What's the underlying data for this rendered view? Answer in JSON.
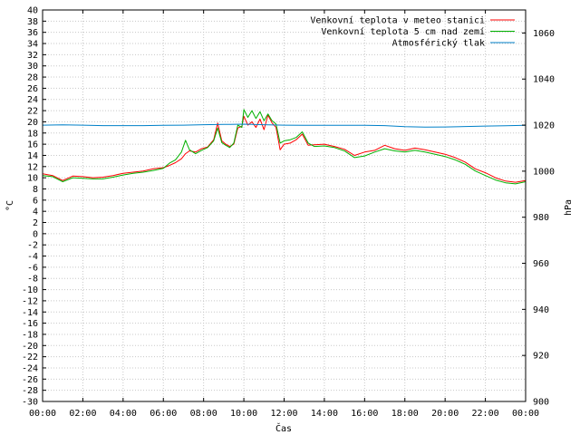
{
  "chart_data": {
    "type": "line",
    "xlabel": "Čas",
    "ylabel": "°C",
    "y2label": "hPa",
    "grid": true,
    "legend_position": "top-right",
    "x_ticks": [
      "00:00",
      "02:00",
      "04:00",
      "06:00",
      "08:00",
      "10:00",
      "12:00",
      "14:00",
      "16:00",
      "18:00",
      "20:00",
      "22:00",
      "00:00"
    ],
    "x_range_hours": [
      0,
      24
    ],
    "ylim": [
      -30,
      40
    ],
    "y_ticks": [
      40,
      38,
      36,
      34,
      32,
      30,
      28,
      26,
      24,
      22,
      20,
      18,
      16,
      14,
      12,
      10,
      8,
      6,
      4,
      2,
      0,
      -2,
      -4,
      -6,
      -8,
      -10,
      -12,
      -14,
      -16,
      -18,
      -20,
      -22,
      -24,
      -26,
      -28,
      -30
    ],
    "y2lim": [
      900,
      1070
    ],
    "y2_ticks": [
      1060,
      1040,
      1020,
      1000,
      980,
      960,
      940,
      920,
      900
    ],
    "series": [
      {
        "name": "Venkovní teplota v meteo stanici",
        "color": "#ff0000",
        "axis": "left",
        "x": [
          0,
          0.5,
          1,
          1.5,
          2,
          2.5,
          3,
          3.5,
          4,
          4.5,
          5,
          5.5,
          6,
          6.3,
          6.6,
          6.9,
          7.1,
          7.3,
          7.6,
          7.9,
          8.2,
          8.5,
          8.7,
          8.9,
          9.1,
          9.3,
          9.5,
          9.7,
          9.9,
          10.0,
          10.2,
          10.4,
          10.6,
          10.8,
          11.0,
          11.2,
          11.4,
          11.6,
          11.8,
          12.0,
          12.3,
          12.6,
          12.9,
          13.2,
          13.5,
          14,
          14.5,
          15,
          15.5,
          16,
          16.5,
          17,
          17.5,
          18,
          18.5,
          19,
          19.5,
          20,
          20.5,
          21,
          21.5,
          22,
          22.5,
          23,
          23.5,
          24
        ],
        "y": [
          10.7,
          10.4,
          9.5,
          10.3,
          10.2,
          10.0,
          10.1,
          10.4,
          10.8,
          11.0,
          11.2,
          11.6,
          11.8,
          12.2,
          12.7,
          13.4,
          14.3,
          14.8,
          14.6,
          15.2,
          15.5,
          16.8,
          19.8,
          16.6,
          16.0,
          15.6,
          16.0,
          18.9,
          19.2,
          21.0,
          19.4,
          20.0,
          19.0,
          20.5,
          18.6,
          21.2,
          19.8,
          19.0,
          15.0,
          16.0,
          16.2,
          16.8,
          17.8,
          15.8,
          15.9,
          16.0,
          15.6,
          15.1,
          14.0,
          14.6,
          14.9,
          15.8,
          15.2,
          14.9,
          15.3,
          15.0,
          14.6,
          14.2,
          13.6,
          12.8,
          11.6,
          10.9,
          10.0,
          9.4,
          9.2,
          9.5
        ]
      },
      {
        "name": "Venkovní teplota 5 cm nad zemí",
        "color": "#00b000",
        "axis": "left",
        "x": [
          0,
          0.5,
          1,
          1.5,
          2,
          2.5,
          3,
          3.5,
          4,
          4.5,
          5,
          5.5,
          6,
          6.3,
          6.6,
          6.9,
          7.1,
          7.3,
          7.6,
          7.9,
          8.2,
          8.5,
          8.7,
          8.9,
          9.1,
          9.3,
          9.5,
          9.7,
          9.9,
          10.0,
          10.2,
          10.4,
          10.6,
          10.8,
          11.0,
          11.2,
          11.4,
          11.6,
          11.8,
          12.0,
          12.3,
          12.6,
          12.9,
          13.2,
          13.5,
          14,
          14.5,
          15,
          15.5,
          16,
          16.5,
          17,
          17.5,
          18,
          18.5,
          19,
          19.5,
          20,
          20.5,
          21,
          21.5,
          22,
          22.5,
          23,
          23.5,
          24
        ],
        "y": [
          10.4,
          10.2,
          9.3,
          10.0,
          9.9,
          9.8,
          9.8,
          10.1,
          10.5,
          10.8,
          11.0,
          11.3,
          11.7,
          12.6,
          13.2,
          14.6,
          16.7,
          15.0,
          14.3,
          14.9,
          15.4,
          16.6,
          18.9,
          16.3,
          15.8,
          15.4,
          16.2,
          19.4,
          19.0,
          22.2,
          20.8,
          22.0,
          20.6,
          21.8,
          20.2,
          21.4,
          20.2,
          19.6,
          16.2,
          16.6,
          16.8,
          17.2,
          18.2,
          16.2,
          15.6,
          15.7,
          15.4,
          14.8,
          13.6,
          13.9,
          14.6,
          15.2,
          14.8,
          14.6,
          14.9,
          14.6,
          14.2,
          13.8,
          13.2,
          12.4,
          11.2,
          10.4,
          9.6,
          9.1,
          8.9,
          9.3
        ]
      },
      {
        "name": "Atmosférický tlak",
        "color": "#0080c8",
        "axis": "right",
        "x": [
          0,
          1,
          2,
          3,
          4,
          5,
          6,
          7,
          8,
          9,
          10,
          11,
          12,
          13,
          14,
          15,
          16,
          17,
          18,
          19,
          20,
          21,
          22,
          23,
          24
        ],
        "y": [
          1020.0,
          1020.1,
          1020.0,
          1019.8,
          1019.8,
          1019.8,
          1019.9,
          1020.0,
          1020.2,
          1020.3,
          1020.4,
          1020.2,
          1020.0,
          1019.9,
          1019.9,
          1019.9,
          1019.9,
          1019.8,
          1019.3,
          1019.1,
          1019.2,
          1019.4,
          1019.6,
          1019.7,
          1019.9
        ]
      }
    ]
  }
}
